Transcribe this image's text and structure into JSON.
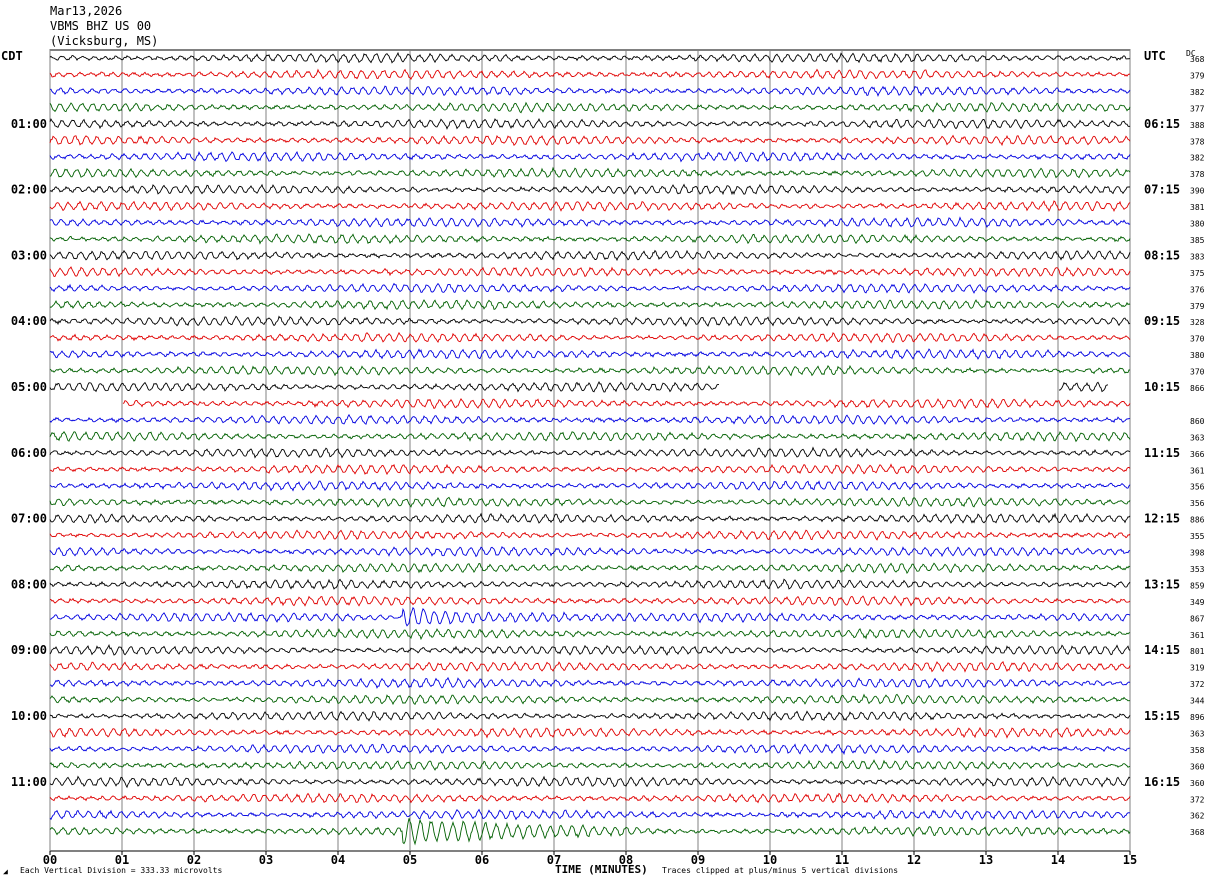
{
  "header": {
    "date": "Mar13,2026",
    "station": "VBMS BHZ US 00",
    "location": "(Vicksburg, MS)"
  },
  "left_tz": "CDT",
  "right_tz": "UTC",
  "dc_header": "DC",
  "footer": {
    "division_note": "Each Vertical Division =  333.33 microvolts",
    "xlabel": "TIME (MINUTES)",
    "clip_note": "Traces clipped at plus/minus 5 vertical divisions"
  },
  "colors": {
    "cycle": [
      "#000000",
      "#e00000",
      "#0000e0",
      "#006000"
    ],
    "grid": "#808080"
  },
  "chart_data": {
    "type": "line",
    "subtype": "helicorder",
    "x_label": "TIME (MINUTES)",
    "x_range": [
      0,
      15
    ],
    "x_ticks": [
      "00",
      "01",
      "02",
      "03",
      "04",
      "05",
      "06",
      "07",
      "08",
      "09",
      "10",
      "11",
      "12",
      "13",
      "14",
      "15"
    ],
    "rows_per_hour": 4,
    "row_count": 48,
    "cdt_labels": [
      "01:00",
      "02:00",
      "03:00",
      "04:00",
      "05:00",
      "06:00",
      "07:00",
      "08:00",
      "09:00",
      "10:00",
      "11:00"
    ],
    "utc_labels": [
      "06:15",
      "07:15",
      "08:15",
      "09:15",
      "10:15",
      "11:15",
      "12:15",
      "13:15",
      "14:15",
      "15:15",
      "16:15"
    ],
    "dc_values": [
      "368",
      "379",
      "382",
      "377",
      "388",
      "378",
      "382",
      "378",
      "390",
      "381",
      "380",
      "385",
      "383",
      "375",
      "376",
      "379",
      "328",
      "370",
      "380",
      "370",
      "866",
      "",
      "860",
      "363",
      "366",
      "361",
      "356",
      "356",
      "886",
      "355",
      "398",
      "353",
      "859",
      "349",
      "867",
      "361",
      "801",
      "319",
      "372",
      "344",
      "896",
      "363",
      "358",
      "360",
      "360",
      "372",
      "362",
      "368"
    ],
    "events": [
      {
        "row": 34,
        "start_min": 4.9,
        "end_min": 7.2,
        "note": "strong signal on trace"
      },
      {
        "row": 47,
        "start_min": 4.9,
        "end_min": 8.2,
        "note": "strong signal on trace"
      }
    ],
    "gaps": [
      {
        "row": 20,
        "start_min": 9.3,
        "end_min": 14.0
      },
      {
        "row": 20,
        "start_min": 14.7,
        "end_min": 15.0
      },
      {
        "row": 21,
        "start_min": 0.0,
        "end_min": 1.0
      }
    ]
  }
}
